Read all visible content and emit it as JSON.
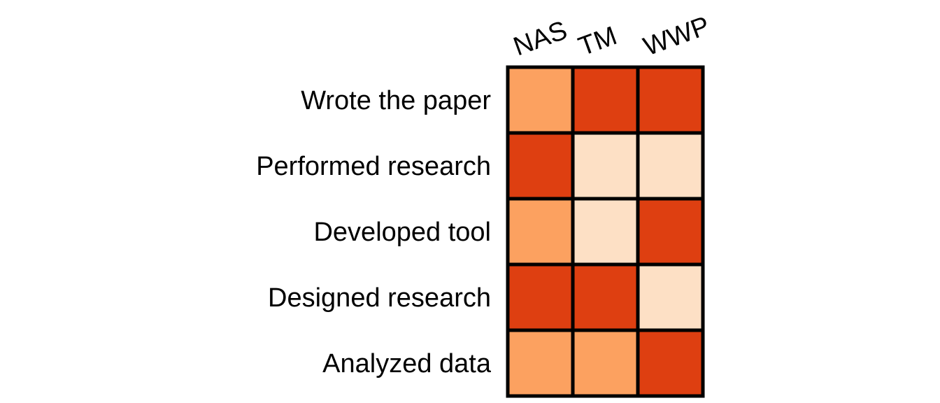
{
  "chart_data": {
    "type": "heatmap",
    "title": "",
    "xlabel": "",
    "ylabel": "",
    "columns": [
      "NAS",
      "TM",
      "WWP"
    ],
    "rows": [
      "Wrote the paper",
      "Performed research",
      "Developed tool",
      "Designed research",
      "Analyzed data"
    ],
    "values": [
      [
        2,
        3,
        3
      ],
      [
        3,
        1,
        1
      ],
      [
        2,
        1,
        3
      ],
      [
        3,
        3,
        1
      ],
      [
        2,
        2,
        3
      ]
    ],
    "levels": {
      "1": "#fde0c5",
      "2": "#fca160",
      "3": "#de3f11"
    },
    "grid_color": "#000000",
    "legend": "none"
  }
}
